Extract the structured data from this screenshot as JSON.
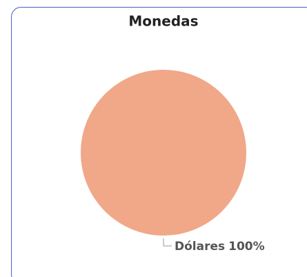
{
  "chart_data": {
    "type": "pie",
    "title": "Monedas",
    "categories": [
      "Dólares"
    ],
    "values": [
      100
    ],
    "value_labels": [
      "100%"
    ],
    "colors": [
      "#f0a888"
    ]
  }
}
